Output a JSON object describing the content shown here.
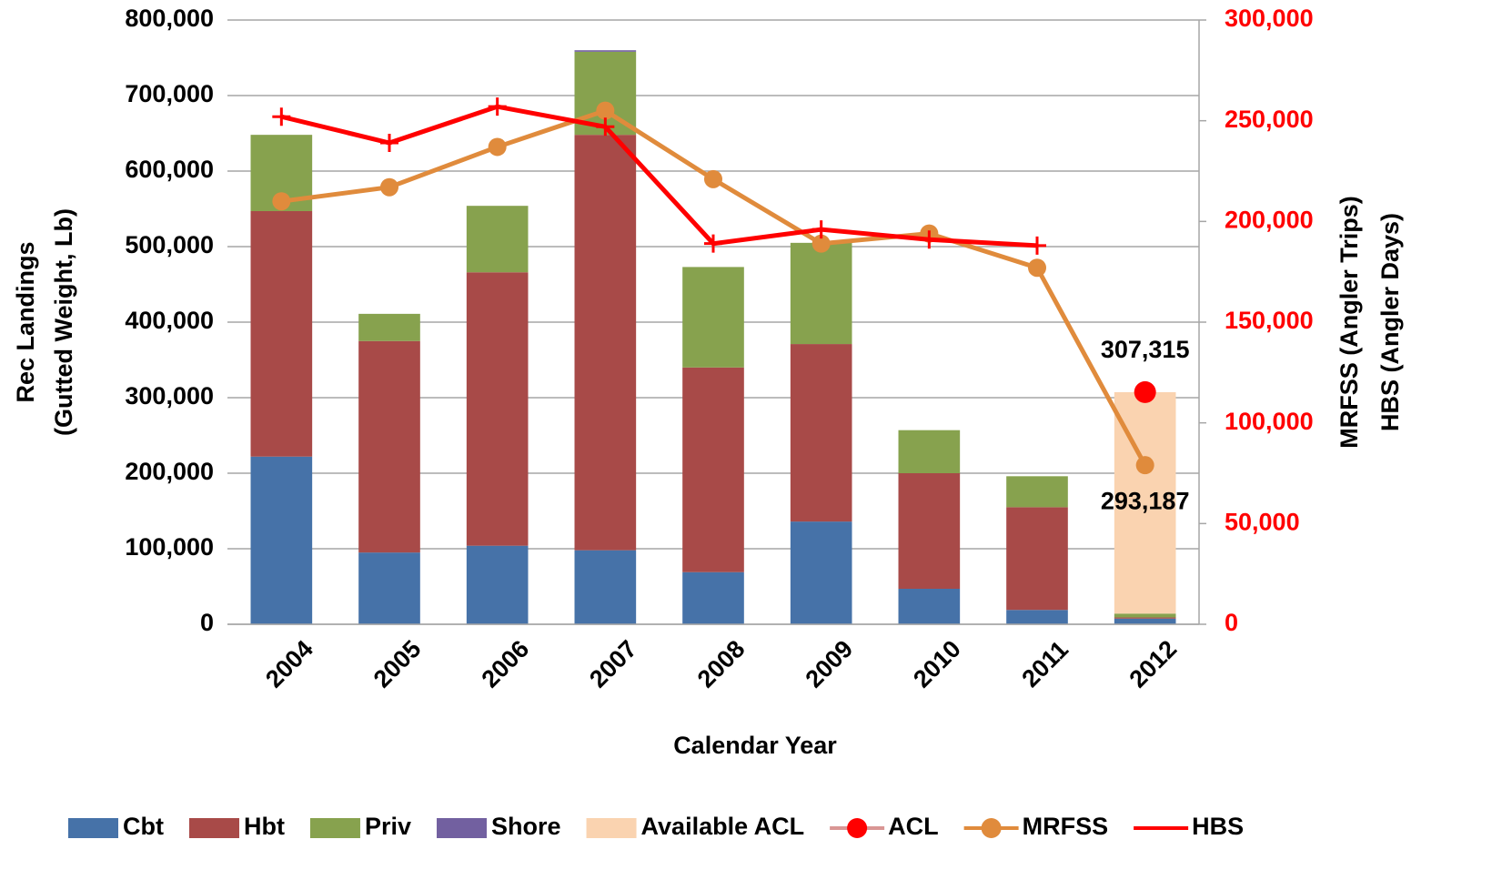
{
  "chart_data": {
    "type": "bar",
    "categories": [
      "2004",
      "2005",
      "2006",
      "2007",
      "2008",
      "2009",
      "2010",
      "2011",
      "2012"
    ],
    "x_label": "Calendar Year",
    "y_label": [
      "Rec Landings",
      "(Gutted Weight, Lb)"
    ],
    "y2_label": [
      "MRFSS (Angler Trips)",
      "HBS (Angler Days)"
    ],
    "ylim": [
      0,
      800000
    ],
    "yticks": [
      0,
      {
        "value": 100000,
        "label": "100,000"
      },
      {
        "value": 200000,
        "label": "200,000"
      },
      {
        "value": 300000,
        "label": "300,000"
      },
      {
        "value": 400000,
        "label": "400,000"
      },
      {
        "value": 500000,
        "label": "500,000"
      },
      {
        "value": 600000,
        "label": "600,000"
      },
      {
        "value": 700000,
        "label": "700,000"
      },
      {
        "value": 800000,
        "label": "800,000"
      }
    ],
    "y2lim": [
      0,
      300000
    ],
    "y2ticks": [
      0,
      {
        "value": 50000,
        "label": "50,000"
      },
      {
        "value": 100000,
        "label": "100,000"
      },
      {
        "value": 150000,
        "label": "150,000"
      },
      {
        "value": 200000,
        "label": "200,000"
      },
      {
        "value": 250000,
        "label": "250,000"
      },
      {
        "value": 300000,
        "label": "300,000"
      }
    ],
    "y2_color": "#ff0000",
    "grid": true,
    "legend": "bottom",
    "series": [
      {
        "name": "Cbt",
        "type": "bar",
        "color": "#4672a8",
        "values": [
          222000,
          95000,
          104000,
          98000,
          69000,
          136000,
          47000,
          19000,
          7500
        ]
      },
      {
        "name": "Hbt",
        "type": "bar",
        "color": "#a84a48",
        "values": [
          325000,
          280000,
          362000,
          550000,
          271000,
          235000,
          153000,
          136000,
          1500
        ]
      },
      {
        "name": "Priv",
        "type": "bar",
        "color": "#87a24e",
        "values": [
          101000,
          36000,
          88000,
          110000,
          133000,
          134000,
          57000,
          41000,
          5128
        ]
      },
      {
        "name": "Shore",
        "type": "bar",
        "color": "#7260a0",
        "values": [
          0,
          0,
          0,
          2000,
          0,
          0,
          0,
          0,
          0
        ]
      },
      {
        "name": "Available ACL",
        "type": "bar",
        "color": "#fad3b0",
        "values": [
          null,
          null,
          null,
          null,
          null,
          null,
          null,
          null,
          293187
        ],
        "value_labels": [
          null,
          null,
          null,
          null,
          null,
          null,
          null,
          null,
          "293,187"
        ]
      },
      {
        "name": "ACL",
        "type": "scatter",
        "color": "#ff0000",
        "values": [
          null,
          null,
          null,
          null,
          null,
          null,
          null,
          null,
          307315
        ],
        "value_labels": [
          null,
          null,
          null,
          null,
          null,
          null,
          null,
          null,
          "307,315"
        ]
      },
      {
        "name": "MRFSS",
        "type": "line",
        "marker": "circle",
        "axis": "y2",
        "color": "#e08b3c",
        "values": [
          210000,
          217000,
          237000,
          255000,
          221000,
          189000,
          194000,
          177000,
          79000
        ]
      },
      {
        "name": "HBS",
        "type": "line",
        "marker": "plus",
        "axis": "y2",
        "color": "#ff0000",
        "values": [
          252000,
          239000,
          257000,
          247000,
          189000,
          196000,
          191000,
          188000,
          null
        ]
      }
    ]
  }
}
